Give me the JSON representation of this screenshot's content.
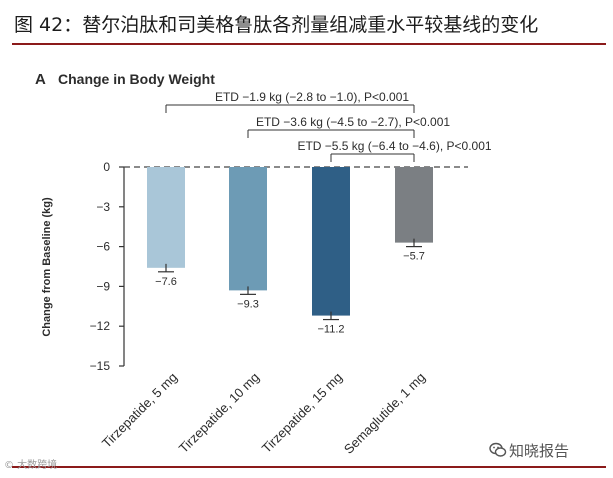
{
  "figure_title": "图 42：替尔泊肽和司美格鲁肽各剂量组减重水平较基线的变化",
  "watermarks": {
    "left": "© 大数跨境",
    "right": "知晓报告"
  },
  "colors": {
    "title_rule": "#8b1a1a",
    "tirzepatide_5mg": "#a9c6d8",
    "tirzepatide_10mg": "#6d9bb5",
    "tirzepatide_15mg": "#2f5f86",
    "semaglutide_1mg": "#7b7f83"
  },
  "chart_data": {
    "type": "bar",
    "panel_letter": "A",
    "title": "Change in Body Weight",
    "ylabel": "Change from Baseline (kg)",
    "xlabel": "",
    "ylim": [
      -15,
      0
    ],
    "yticks": [
      0,
      -3,
      -6,
      -9,
      -12,
      -15
    ],
    "ytick_labels": [
      "0",
      "−3",
      "−6",
      "−9",
      "−12",
      "−15"
    ],
    "categories": [
      "Tirzepatide, 5 mg",
      "Tirzepatide, 10 mg",
      "Tirzepatide, 15 mg",
      "Semaglutide, 1 mg"
    ],
    "values": [
      -7.6,
      -9.3,
      -11.2,
      -5.7
    ],
    "value_labels": [
      "−7.6",
      "−9.3",
      "−11.2",
      "−5.7"
    ],
    "error_bar": [
      0.3,
      0.3,
      0.3,
      0.3
    ],
    "bar_colors": [
      "#a9c6d8",
      "#6d9bb5",
      "#2f5f86",
      "#7b7f83"
    ],
    "baseline_dashed": true,
    "annotations": [
      {
        "text": "ETD −1.9 kg (−2.8 to −1.0), P<0.001",
        "from": 0,
        "to": 3
      },
      {
        "text": "ETD −3.6 kg (−4.5 to −2.7), P<0.001",
        "from": 1,
        "to": 3
      },
      {
        "text": "ETD −5.5 kg (−6.4 to −4.6), P<0.001",
        "from": 2,
        "to": 3
      }
    ]
  }
}
